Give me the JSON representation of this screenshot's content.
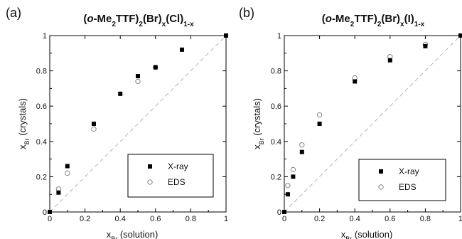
{
  "chart_data": [
    {
      "type": "scatter",
      "panel_label": "(a)",
      "title": {
        "parts": [
          {
            "t": "(",
            "s": null
          },
          {
            "t": "o",
            "s": null,
            "italic": true
          },
          {
            "t": "-Me",
            "s": null
          },
          {
            "t": "2",
            "s": "sub"
          },
          {
            "t": "TTF)",
            "s": null
          },
          {
            "t": "2",
            "s": "sub"
          },
          {
            "t": "(Br)",
            "s": null
          },
          {
            "t": "x",
            "s": "sub"
          },
          {
            "t": "(Cl)",
            "s": null
          },
          {
            "t": "1-x",
            "s": "sub"
          }
        ]
      },
      "xlabel": {
        "main": "x",
        "sub": "Br",
        "rest": " (solution)"
      },
      "ylabel": {
        "main": "x",
        "sub": "Br",
        "rest": " (crystals)"
      },
      "xlim": [
        0,
        1
      ],
      "ylim": [
        0,
        1
      ],
      "xticks": [
        "0",
        "0.2",
        "0.4",
        "0.6",
        "0.8",
        "1"
      ],
      "yticks": [
        "0",
        "0.2",
        "0.4",
        "0.6",
        "0.8",
        "1"
      ],
      "diagonal": true,
      "legend_position": "bottom-right",
      "series": [
        {
          "name": "X-ray",
          "marker": "filled-square",
          "x": [
            0,
            0.05,
            0.1,
            0.25,
            0.4,
            0.5,
            0.6,
            0.75,
            1.0
          ],
          "y": [
            0,
            0.11,
            0.26,
            0.5,
            0.67,
            0.77,
            0.82,
            0.92,
            1.0
          ]
        },
        {
          "name": "EDS",
          "marker": "open-circle",
          "x": [
            0.05,
            0.1,
            0.25,
            0.5,
            0.6
          ],
          "y": [
            0.13,
            0.22,
            0.47,
            0.74,
            0.82
          ]
        }
      ]
    },
    {
      "type": "scatter",
      "panel_label": "(b)",
      "title": {
        "parts": [
          {
            "t": "(",
            "s": null
          },
          {
            "t": "o",
            "s": null,
            "italic": true
          },
          {
            "t": "-Me",
            "s": null
          },
          {
            "t": "2",
            "s": "sub"
          },
          {
            "t": "TTF)",
            "s": null
          },
          {
            "t": "2",
            "s": "sub"
          },
          {
            "t": "(Br)",
            "s": null
          },
          {
            "t": "x",
            "s": "sub"
          },
          {
            "t": "(I)",
            "s": null
          },
          {
            "t": "1-x",
            "s": "sub"
          }
        ]
      },
      "xlabel": {
        "main": "x",
        "sub": "Br",
        "rest": " (solution)"
      },
      "ylabel": {
        "main": "x",
        "sub": "Br",
        "rest": " (crystals)"
      },
      "xlim": [
        0,
        1
      ],
      "ylim": [
        0,
        1
      ],
      "xticks": [
        "0",
        "0.2",
        "0.4",
        "0.6",
        "0.8",
        "1"
      ],
      "yticks": [
        "0",
        "0.2",
        "0.4",
        "0.6",
        "0.8",
        "1"
      ],
      "diagonal": true,
      "legend_position": "bottom-right",
      "series": [
        {
          "name": "X-ray",
          "marker": "filled-square",
          "x": [
            0,
            0.02,
            0.05,
            0.1,
            0.2,
            0.4,
            0.6,
            0.8,
            1.0
          ],
          "y": [
            0,
            0.1,
            0.2,
            0.34,
            0.5,
            0.74,
            0.86,
            0.94,
            1.0
          ]
        },
        {
          "name": "EDS",
          "marker": "open-circle",
          "x": [
            0.02,
            0.05,
            0.1,
            0.2,
            0.4,
            0.6,
            0.8
          ],
          "y": [
            0.15,
            0.24,
            0.38,
            0.55,
            0.76,
            0.88,
            0.95
          ]
        }
      ]
    }
  ]
}
